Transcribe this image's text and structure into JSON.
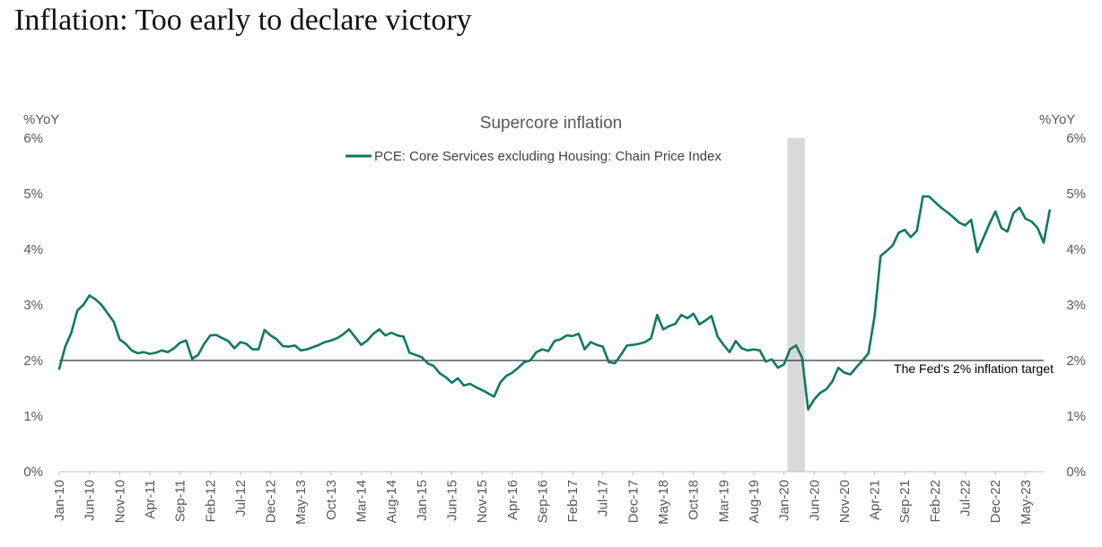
{
  "headline": "Inflation: Too early to declare victory",
  "colors": {
    "series": "#0e7a5f",
    "recession_band": "#d9d9d9",
    "target_line": "#000000",
    "axis_text": "#595959"
  },
  "chart_data": {
    "type": "line",
    "title": "Supercore inflation",
    "y_unit_left": "%YoY",
    "y_unit_right": "%YoY",
    "ylim": [
      0,
      6
    ],
    "yticks": [
      "0%",
      "1%",
      "2%",
      "3%",
      "4%",
      "5%",
      "6%"
    ],
    "x_range": [
      "Jan-10",
      "Aug-23"
    ],
    "xticks": [
      "Jan-10",
      "Jun-10",
      "Nov-10",
      "Apr-11",
      "Sep-11",
      "Feb-12",
      "Jul-12",
      "Dec-12",
      "May-13",
      "Oct-13",
      "Mar-14",
      "Aug-14",
      "Jan-15",
      "Jun-15",
      "Nov-15",
      "Apr-16",
      "Sep-16",
      "Feb-17",
      "Jul-17",
      "Dec-17",
      "May-18",
      "Oct-18",
      "Mar-19",
      "Aug-19",
      "Jan-20",
      "Jun-20",
      "Nov-20",
      "Apr-21",
      "Sep-21",
      "Feb-22",
      "Jul-22",
      "Dec-22",
      "May-23"
    ],
    "grid": false,
    "legend_position": "top-center",
    "shaded_periods": [
      {
        "start": "Feb-20",
        "end": "Apr-20"
      }
    ],
    "reference_lines": [
      {
        "y": 2.0,
        "label": "The Fed’s 2% inflation target"
      }
    ],
    "series": [
      {
        "name": "PCE: Core Services excluding Housing: Chain Price Index",
        "start": "Jan-10",
        "values": [
          1.85,
          2.25,
          2.5,
          2.9,
          3.0,
          3.17,
          3.1,
          3.0,
          2.85,
          2.7,
          2.38,
          2.3,
          2.18,
          2.13,
          2.15,
          2.12,
          2.14,
          2.18,
          2.15,
          2.22,
          2.32,
          2.36,
          2.03,
          2.1,
          2.3,
          2.45,
          2.46,
          2.4,
          2.35,
          2.22,
          2.33,
          2.3,
          2.2,
          2.2,
          2.55,
          2.45,
          2.38,
          2.26,
          2.25,
          2.27,
          2.18,
          2.2,
          2.24,
          2.28,
          2.33,
          2.36,
          2.4,
          2.47,
          2.56,
          2.42,
          2.28,
          2.36,
          2.48,
          2.56,
          2.45,
          2.5,
          2.45,
          2.43,
          2.14,
          2.1,
          2.06,
          1.95,
          1.9,
          1.77,
          1.7,
          1.6,
          1.68,
          1.55,
          1.58,
          1.52,
          1.47,
          1.41,
          1.35,
          1.6,
          1.72,
          1.78,
          1.87,
          1.97,
          2.0,
          2.15,
          2.2,
          2.17,
          2.35,
          2.38,
          2.45,
          2.44,
          2.48,
          2.2,
          2.33,
          2.28,
          2.25,
          1.97,
          1.95,
          2.1,
          2.27,
          2.28,
          2.3,
          2.33,
          2.4,
          2.82,
          2.56,
          2.62,
          2.66,
          2.82,
          2.76,
          2.84,
          2.65,
          2.72,
          2.8,
          2.43,
          2.28,
          2.15,
          2.35,
          2.22,
          2.18,
          2.2,
          2.18,
          1.98,
          2.02,
          1.87,
          1.93,
          2.2,
          2.27,
          2.05,
          1.12,
          1.3,
          1.42,
          1.48,
          1.62,
          1.87,
          1.78,
          1.75,
          1.88,
          2.0,
          2.13,
          2.8,
          3.88,
          3.97,
          4.07,
          4.3,
          4.35,
          4.22,
          4.33,
          4.95,
          4.95,
          4.85,
          4.75,
          4.67,
          4.58,
          4.48,
          4.43,
          4.53,
          3.95,
          4.2,
          4.45,
          4.68,
          4.38,
          4.32,
          4.65,
          4.75,
          4.55,
          4.5,
          4.38,
          4.12,
          4.7
        ]
      }
    ]
  }
}
